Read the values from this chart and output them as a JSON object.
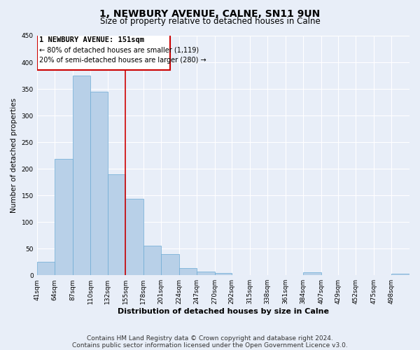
{
  "title": "1, NEWBURY AVENUE, CALNE, SN11 9UN",
  "subtitle": "Size of property relative to detached houses in Calne",
  "xlabel": "Distribution of detached houses by size in Calne",
  "ylabel": "Number of detached properties",
  "bin_labels": [
    "41sqm",
    "64sqm",
    "87sqm",
    "110sqm",
    "132sqm",
    "155sqm",
    "178sqm",
    "201sqm",
    "224sqm",
    "247sqm",
    "270sqm",
    "292sqm",
    "315sqm",
    "338sqm",
    "361sqm",
    "384sqm",
    "407sqm",
    "429sqm",
    "452sqm",
    "475sqm",
    "498sqm"
  ],
  "bar_values": [
    25,
    218,
    375,
    345,
    190,
    143,
    56,
    40,
    14,
    7,
    4,
    0,
    0,
    0,
    0,
    5,
    0,
    0,
    0,
    0,
    3
  ],
  "bar_color": "#b8d0e8",
  "bar_edge_color": "#6aaad4",
  "vline_x": 155,
  "vline_color": "#cc0000",
  "annotation_box_color": "#cc0000",
  "annotation_lines": [
    "1 NEWBURY AVENUE: 151sqm",
    "← 80% of detached houses are smaller (1,119)",
    "20% of semi-detached houses are larger (280) →"
  ],
  "ylim": [
    0,
    450
  ],
  "bin_edges_values": [
    41,
    64,
    87,
    110,
    132,
    155,
    178,
    201,
    224,
    247,
    270,
    292,
    315,
    338,
    361,
    384,
    407,
    429,
    452,
    475,
    498
  ],
  "footnote_line1": "Contains HM Land Registry data © Crown copyright and database right 2024.",
  "footnote_line2": "Contains public sector information licensed under the Open Government Licence v3.0.",
  "background_color": "#e8eef8",
  "grid_color": "#ffffff",
  "title_fontsize": 10,
  "subtitle_fontsize": 8.5,
  "axis_label_fontsize": 8,
  "ylabel_fontsize": 7.5,
  "tick_fontsize": 6.5,
  "annotation_fontsize": 7.5,
  "footnote_fontsize": 6.5
}
